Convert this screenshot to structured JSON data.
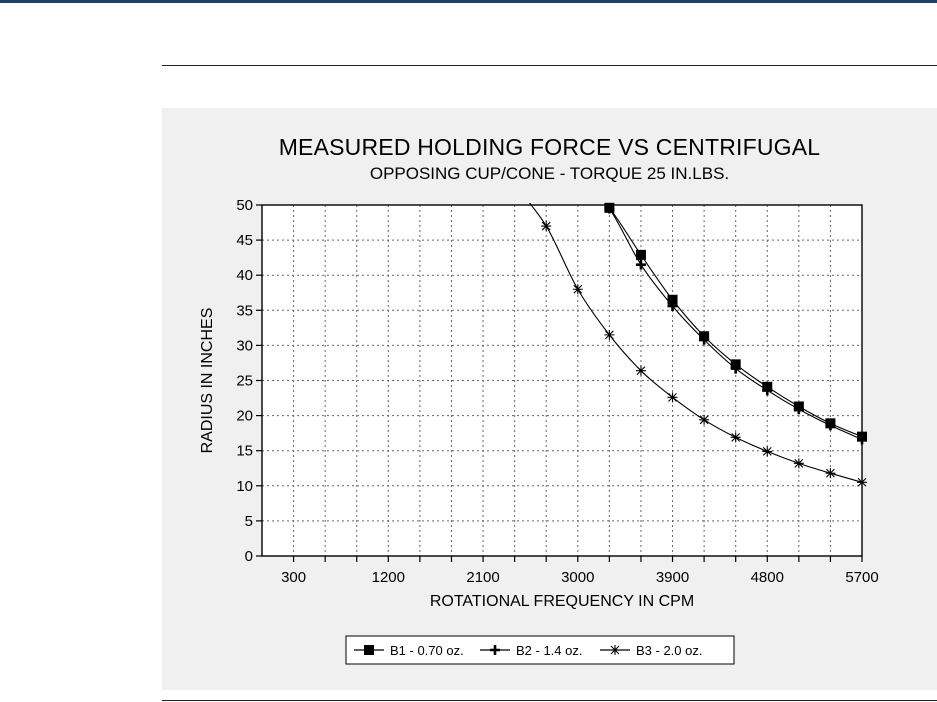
{
  "chart_data": {
    "type": "line",
    "title": "MEASURED HOLDING FORCE VS CENTRIFUGAL",
    "subtitle": "OPPOSING CUP/CONE - TORQUE 25 IN.LBS.",
    "xlabel": "ROTATIONAL FREQUENCY IN CPM",
    "ylabel": "RADIUS IN INCHES",
    "xlim": [
      0,
      5700
    ],
    "ylim": [
      0,
      50
    ],
    "x_ticks": [
      300,
      1200,
      2100,
      3000,
      3900,
      4800,
      5700
    ],
    "y_ticks": [
      0,
      5,
      10,
      15,
      20,
      25,
      30,
      35,
      40,
      45,
      50
    ],
    "grid": true,
    "legend_position": "bottom",
    "series": [
      {
        "name": "B1 - 0.70 oz.",
        "marker": "square",
        "x": [
          3300,
          3600,
          3900,
          4200,
          4500,
          4800,
          5100,
          5400,
          5700
        ],
        "y": [
          49.6,
          42.9,
          36.5,
          31.3,
          27.3,
          24.1,
          21.3,
          18.9,
          17.0
        ]
      },
      {
        "name": "B2 - 1.4 oz.",
        "marker": "plus",
        "x": [
          3300,
          3600,
          3900,
          4200,
          4500,
          4800,
          5100,
          5400,
          5700
        ],
        "y": [
          49.5,
          41.5,
          35.6,
          30.8,
          26.7,
          23.6,
          20.9,
          18.6,
          16.6
        ]
      },
      {
        "name": "B3 - 2.0 oz.",
        "marker": "asterisk",
        "x": [
          2700,
          3000,
          3300,
          3600,
          3900,
          4200,
          4500,
          4800,
          5100,
          5400,
          5700
        ],
        "y": [
          47.0,
          38.0,
          31.5,
          26.4,
          22.6,
          19.4,
          16.9,
          14.9,
          13.2,
          11.8,
          10.5
        ]
      }
    ]
  }
}
